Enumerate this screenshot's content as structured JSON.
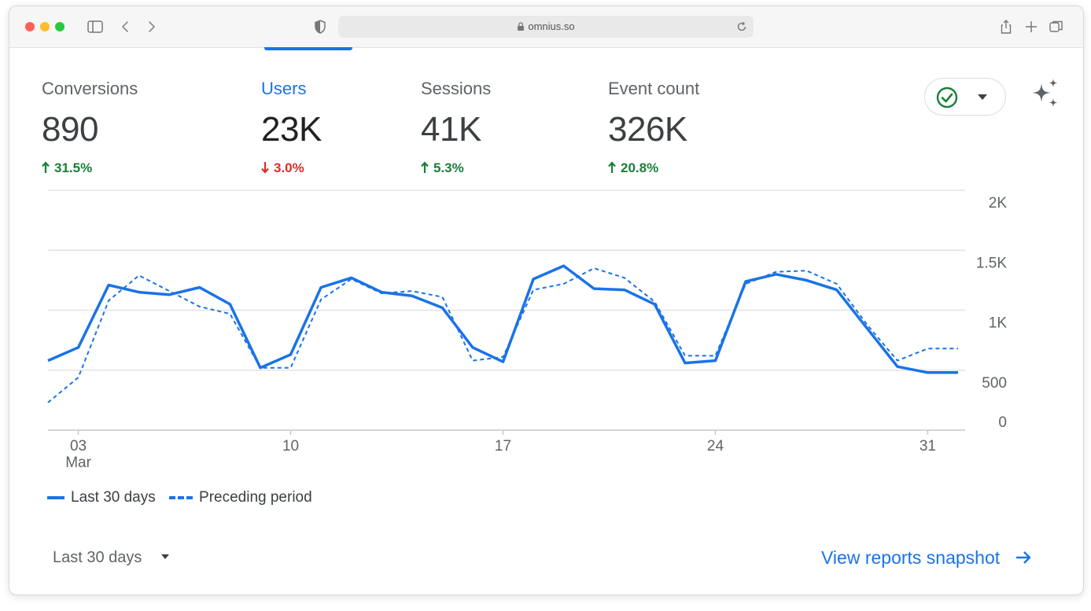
{
  "browser": {
    "url": "omnius.so",
    "traffic_lights": [
      "#fe5f57",
      "#febc2e",
      "#28c840"
    ]
  },
  "metrics": [
    {
      "label": "Conversions",
      "value": "890",
      "change": "31.5%",
      "direction": "up",
      "active": false
    },
    {
      "label": "Users",
      "value": "23K",
      "change": "3.0%",
      "direction": "down",
      "active": true
    },
    {
      "label": "Sessions",
      "value": "41K",
      "change": "5.3%",
      "direction": "up",
      "active": false
    },
    {
      "label": "Event count",
      "value": "326K",
      "change": "20.8%",
      "direction": "up",
      "active": false
    }
  ],
  "colors": {
    "accent": "#1a73e8",
    "up": "#188038",
    "down": "#d93025",
    "check": "#188038"
  },
  "chart_data": {
    "type": "line",
    "x": [
      "Mar 02",
      "Mar 03",
      "Mar 04",
      "Mar 05",
      "Mar 06",
      "Mar 07",
      "Mar 08",
      "Mar 09",
      "Mar 10",
      "Mar 11",
      "Mar 12",
      "Mar 13",
      "Mar 14",
      "Mar 15",
      "Mar 16",
      "Mar 17",
      "Mar 18",
      "Mar 19",
      "Mar 20",
      "Mar 21",
      "Mar 22",
      "Mar 23",
      "Mar 24",
      "Mar 25",
      "Mar 26",
      "Mar 27",
      "Mar 28",
      "Mar 29",
      "Mar 30",
      "Mar 31",
      "Apr 01"
    ],
    "x_tick_labels": [
      {
        "x": "Mar 03",
        "top": "03",
        "bottom": "Mar"
      },
      {
        "x": "Mar 10",
        "top": "10",
        "bottom": ""
      },
      {
        "x": "Mar 17",
        "top": "17",
        "bottom": ""
      },
      {
        "x": "Mar 24",
        "top": "24",
        "bottom": ""
      },
      {
        "x": "Mar 31",
        "top": "31",
        "bottom": ""
      }
    ],
    "y_ticks": [
      {
        "value": 0,
        "label": "0"
      },
      {
        "value": 500,
        "label": "500"
      },
      {
        "value": 1000,
        "label": "1K"
      },
      {
        "value": 1500,
        "label": "1.5K"
      },
      {
        "value": 2000,
        "label": "2K"
      }
    ],
    "ylim": [
      0,
      2000
    ],
    "series": [
      {
        "name": "Last 30 days",
        "style": "solid",
        "values": [
          580,
          690,
          1210,
          1150,
          1130,
          1190,
          1050,
          520,
          630,
          1190,
          1270,
          1150,
          1120,
          1020,
          690,
          570,
          1260,
          1370,
          1180,
          1170,
          1050,
          560,
          580,
          1240,
          1300,
          1250,
          1170,
          850,
          530,
          480,
          480
        ]
      },
      {
        "name": "Preceding period",
        "style": "dashed",
        "values": [
          230,
          440,
          1080,
          1290,
          1160,
          1030,
          970,
          520,
          520,
          1090,
          1260,
          1140,
          1160,
          1110,
          580,
          610,
          1170,
          1220,
          1350,
          1270,
          1070,
          620,
          620,
          1220,
          1320,
          1330,
          1220,
          880,
          580,
          680,
          680
        ]
      }
    ],
    "grid": true,
    "legend": "bottom-left"
  },
  "footer": {
    "period_label": "Last 30 days",
    "link_label": "View reports snapshot"
  },
  "icons": {
    "status": "check-circle-icon",
    "dropdown": "caret-down-icon",
    "sparkle": "sparkle-icon",
    "link_arrow": "arrow-right-icon"
  }
}
